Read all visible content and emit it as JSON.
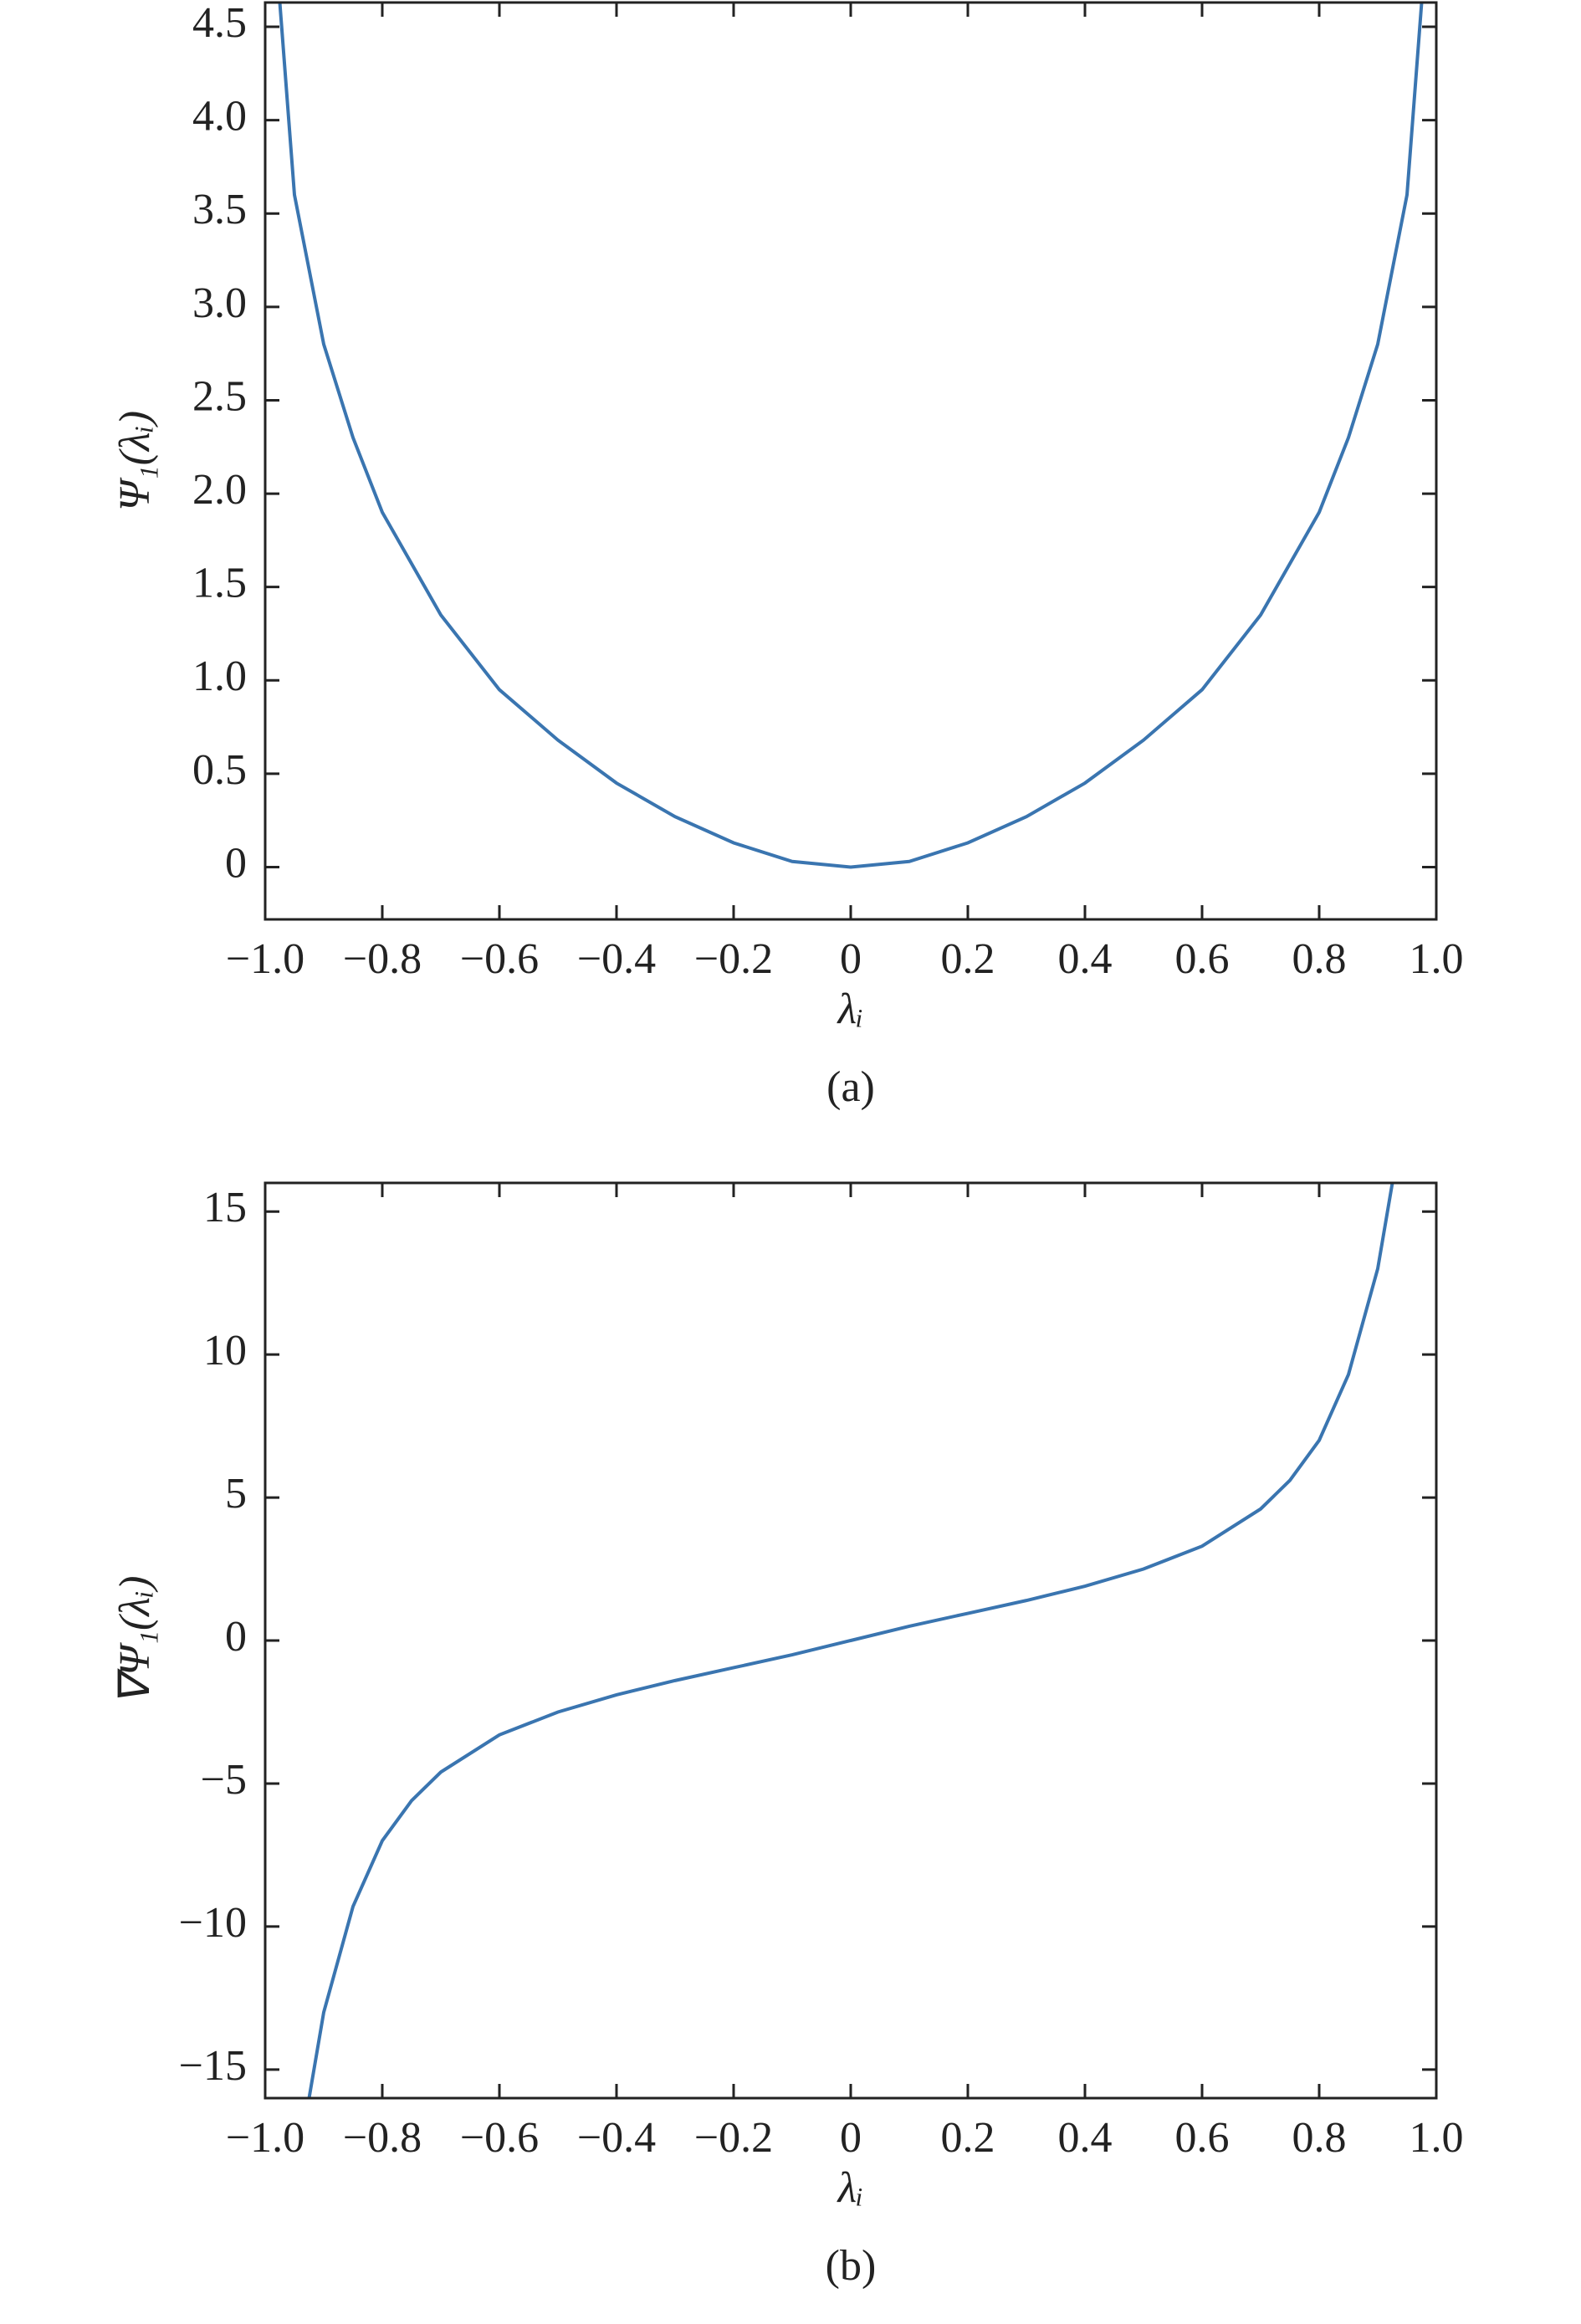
{
  "chart_data": [
    {
      "type": "line",
      "caption": "(a)",
      "x_label": "λᵢ",
      "y_label": "Ψ₁(λᵢ)",
      "x": [
        -0.975,
        -0.95,
        -0.9,
        -0.85,
        -0.8,
        -0.7,
        -0.6,
        -0.5,
        -0.4,
        -0.3,
        -0.2,
        -0.1,
        0,
        0.1,
        0.2,
        0.3,
        0.4,
        0.5,
        0.6,
        0.7,
        0.8,
        0.85,
        0.9,
        0.95,
        0.975
      ],
      "series": [
        {
          "color": "#3a75b0",
          "values": [
            4.63,
            3.6,
            2.8,
            2.3,
            1.9,
            1.35,
            0.95,
            0.68,
            0.45,
            0.27,
            0.13,
            0.03,
            0,
            0.03,
            0.13,
            0.27,
            0.45,
            0.68,
            0.95,
            1.35,
            1.9,
            2.3,
            2.8,
            3.6,
            4.63
          ]
        }
      ],
      "xlim": [
        -1,
        1
      ],
      "xticks": [
        {
          "value": -1,
          "label": "−1.0"
        },
        {
          "value": -0.8,
          "label": "−0.8"
        },
        {
          "value": -0.6,
          "label": "−0.6"
        },
        {
          "value": -0.4,
          "label": "−0.4"
        },
        {
          "value": -0.2,
          "label": "−0.2"
        },
        0,
        0.2,
        0.4,
        0.6,
        0.8,
        {
          "value": 1,
          "label": "1.0"
        }
      ],
      "ylim": [
        -0.28,
        4.63
      ],
      "yticks": [
        0,
        0.5,
        {
          "value": 1,
          "label": "1.0"
        },
        1.5,
        {
          "value": 2,
          "label": "2.0"
        },
        2.5,
        {
          "value": 3,
          "label": "3.0"
        },
        3.5,
        {
          "value": 4,
          "label": "4.0"
        },
        4.5
      ]
    },
    {
      "type": "line",
      "caption": "(b)",
      "x_label": "λᵢ",
      "y_label": "∇Ψ₁(λᵢ)",
      "x": [
        -0.925,
        -0.9,
        -0.85,
        -0.8,
        -0.75,
        -0.7,
        -0.6,
        -0.5,
        -0.4,
        -0.3,
        -0.2,
        -0.1,
        0,
        0.1,
        0.2,
        0.3,
        0.4,
        0.5,
        0.6,
        0.7,
        0.75,
        0.8,
        0.85,
        0.9,
        0.925
      ],
      "series": [
        {
          "color": "#3a75b0",
          "values": [
            -16,
            -13,
            -9.3,
            -7,
            -5.6,
            -4.6,
            -3.3,
            -2.5,
            -1.9,
            -1.4,
            -0.95,
            -0.5,
            0,
            0.5,
            0.95,
            1.4,
            1.9,
            2.5,
            3.3,
            4.6,
            5.6,
            7,
            9.3,
            13,
            16
          ]
        }
      ],
      "xlim": [
        -1,
        1
      ],
      "xticks": [
        {
          "value": -1,
          "label": "−1.0"
        },
        {
          "value": -0.8,
          "label": "−0.8"
        },
        {
          "value": -0.6,
          "label": "−0.6"
        },
        {
          "value": -0.4,
          "label": "−0.4"
        },
        {
          "value": -0.2,
          "label": "−0.2"
        },
        0,
        0.2,
        0.4,
        0.6,
        0.8,
        {
          "value": 1,
          "label": "1.0"
        }
      ],
      "ylim": [
        -16,
        16
      ],
      "yticks": [
        {
          "value": -15,
          "label": "−15"
        },
        {
          "value": -10,
          "label": "−10"
        },
        {
          "value": -5,
          "label": "−5"
        },
        0,
        5,
        10,
        15
      ]
    }
  ]
}
